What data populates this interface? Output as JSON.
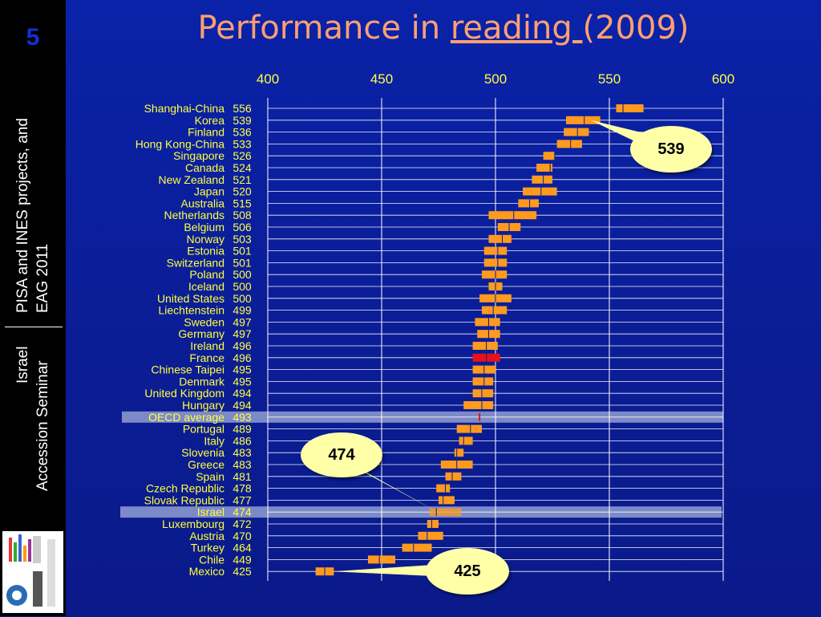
{
  "slide_number": "5",
  "sidebar": {
    "line1": "PISA and INES projects, and",
    "line2": "EAG 2011",
    "line3": "Israel",
    "line4": "Accession Seminar"
  },
  "title": {
    "before": "Performance in ",
    "underlined": "reading ",
    "after": "(2009)"
  },
  "callouts": {
    "top": "539",
    "middle": "474",
    "bottom": "425"
  },
  "colors": {
    "bar": "#ff9a1f",
    "france": "#e8101a",
    "label": "#ffff40",
    "highlight": "#9aa6d6",
    "callout_bg": "#ffffa8"
  },
  "chart_data": {
    "type": "bar",
    "xlim": [
      400,
      600
    ],
    "x_ticks": [
      "400",
      "450",
      "500",
      "550",
      "600"
    ],
    "grid": true,
    "rows": [
      {
        "label": "Shanghai-China",
        "value": 556
      },
      {
        "label": "Korea",
        "value": 539
      },
      {
        "label": "Finland",
        "value": 536
      },
      {
        "label": "Hong Kong-China",
        "value": 533
      },
      {
        "label": "Singapore",
        "value": 526
      },
      {
        "label": "Canada",
        "value": 524
      },
      {
        "label": "New Zealand",
        "value": 521
      },
      {
        "label": "Japan",
        "value": 520
      },
      {
        "label": "Australia",
        "value": 515
      },
      {
        "label": "Netherlands",
        "value": 508
      },
      {
        "label": "Belgium",
        "value": 506
      },
      {
        "label": "Norway",
        "value": 503
      },
      {
        "label": "Estonia",
        "value": 501
      },
      {
        "label": "Switzerland",
        "value": 501
      },
      {
        "label": "Poland",
        "value": 500
      },
      {
        "label": "Iceland",
        "value": 500
      },
      {
        "label": "United States",
        "value": 500
      },
      {
        "label": "Liechtenstein",
        "value": 499
      },
      {
        "label": "Sweden",
        "value": 497
      },
      {
        "label": "Germany",
        "value": 497
      },
      {
        "label": "Ireland",
        "value": 496
      },
      {
        "label": "France",
        "value": 496
      },
      {
        "label": "Chinese Taipei",
        "value": 495
      },
      {
        "label": "Denmark",
        "value": 495
      },
      {
        "label": "United Kingdom",
        "value": 494
      },
      {
        "label": "Hungary",
        "value": 494
      },
      {
        "label": "OECD average",
        "value": 493
      },
      {
        "label": "Portugal",
        "value": 489
      },
      {
        "label": "Italy",
        "value": 486
      },
      {
        "label": "Slovenia",
        "value": 483
      },
      {
        "label": "Greece",
        "value": 483
      },
      {
        "label": "Spain",
        "value": 481
      },
      {
        "label": "Czech Republic",
        "value": 478
      },
      {
        "label": "Slovak Republic",
        "value": 477
      },
      {
        "label": "Israel",
        "value": 474
      },
      {
        "label": "Luxembourg",
        "value": 472
      },
      {
        "label": "Austria",
        "value": 470
      },
      {
        "label": "Turkey",
        "value": 464
      },
      {
        "label": "Chile",
        "value": 449
      },
      {
        "label": "Mexico",
        "value": 425
      }
    ],
    "ranges": [
      [
        553,
        565
      ],
      [
        531,
        546
      ],
      [
        530,
        541
      ],
      [
        527,
        538
      ],
      [
        521,
        526
      ],
      [
        518,
        525
      ],
      [
        516,
        525
      ],
      [
        512,
        527
      ],
      [
        510,
        519
      ],
      [
        497,
        518
      ],
      [
        501,
        511
      ],
      [
        497,
        507
      ],
      [
        495,
        505
      ],
      [
        495,
        505
      ],
      [
        494,
        505
      ],
      [
        497,
        503
      ],
      [
        493,
        507
      ],
      [
        494,
        505
      ],
      [
        491,
        502
      ],
      [
        492,
        502
      ],
      [
        490,
        501
      ],
      [
        490,
        502
      ],
      [
        490,
        500
      ],
      [
        490,
        499
      ],
      [
        490,
        499
      ],
      [
        486,
        499
      ],
      [
        493,
        493
      ],
      [
        483,
        494
      ],
      [
        484,
        490
      ],
      [
        482,
        486
      ],
      [
        476,
        490
      ],
      [
        478,
        485
      ],
      [
        474,
        480
      ],
      [
        475,
        482
      ],
      [
        471,
        485
      ],
      [
        470,
        475
      ],
      [
        466,
        477
      ],
      [
        459,
        472
      ],
      [
        444,
        456
      ],
      [
        421,
        429
      ]
    ],
    "highlight_rows": [
      "OECD average",
      "Israel"
    ],
    "red_row": "France"
  }
}
